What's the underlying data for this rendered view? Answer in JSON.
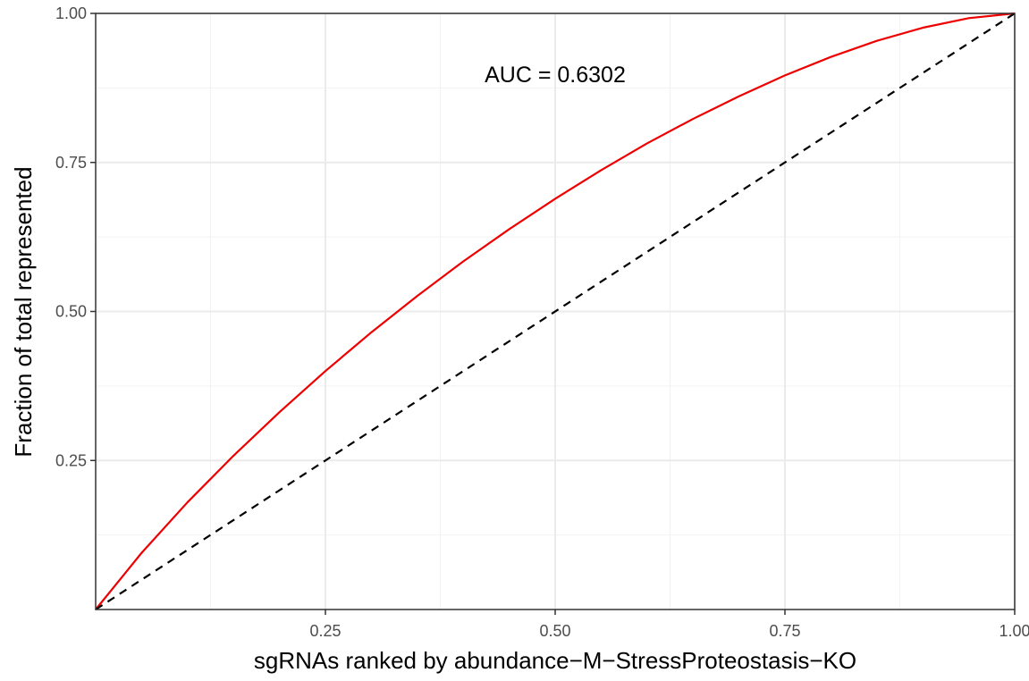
{
  "chart_data": {
    "type": "line",
    "xlabel": "sgRNAs ranked by abundance−M−StressProteostasis−KO",
    "ylabel": "Fraction of total represented",
    "xlim": [
      0,
      1
    ],
    "ylim": [
      0,
      1
    ],
    "x_ticks": [
      "0.25",
      "0.50",
      "0.75",
      "1.00"
    ],
    "y_ticks": [
      "0.25",
      "0.50",
      "0.75",
      "1.00"
    ],
    "grid": true,
    "annotation": "AUC = 0.6302",
    "series": [
      {
        "style": "solid",
        "color": "#ee0000",
        "x": [
          0,
          0.05,
          0.1,
          0.15,
          0.2,
          0.25,
          0.3,
          0.35,
          0.4,
          0.45,
          0.5,
          0.55,
          0.6,
          0.65,
          0.7,
          0.75,
          0.8,
          0.85,
          0.9,
          0.95,
          1.0
        ],
        "y": [
          0,
          0.095,
          0.18,
          0.258,
          0.331,
          0.4,
          0.465,
          0.526,
          0.584,
          0.638,
          0.689,
          0.737,
          0.782,
          0.823,
          0.861,
          0.896,
          0.927,
          0.954,
          0.976,
          0.992,
          1.0
        ]
      },
      {
        "style": "dashed",
        "color": "#000000",
        "x": [
          0,
          1
        ],
        "y": [
          0,
          1
        ]
      }
    ]
  }
}
